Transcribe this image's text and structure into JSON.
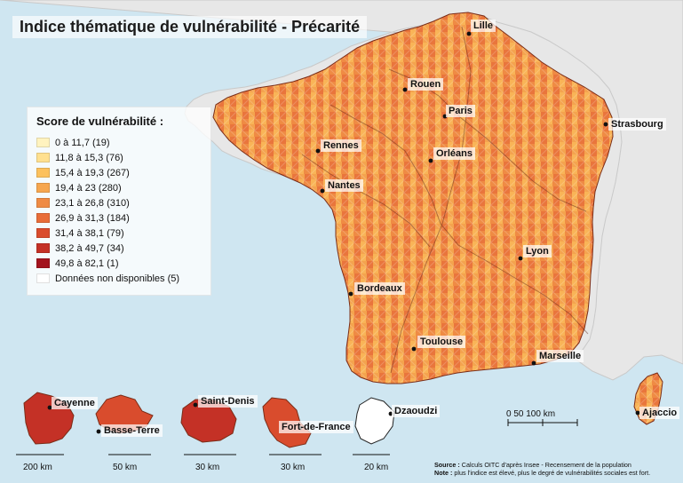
{
  "title": "Indice thématique de vulnérabilité - Précarité",
  "legend": {
    "title": "Score de vulnérabilité :",
    "items": [
      {
        "label": "0 à 11,7 (19)",
        "color": "#fff3bf"
      },
      {
        "label": "11,8 à 15,3 (76)",
        "color": "#ffe08f"
      },
      {
        "label": "15,4 à 19,3 (267)",
        "color": "#fcc15d"
      },
      {
        "label": "19,4 à 23 (280)",
        "color": "#f6a64f"
      },
      {
        "label": "23,1 à 26,8 (310)",
        "color": "#ef8b44"
      },
      {
        "label": "26,9 à 31,3 (184)",
        "color": "#e86d39"
      },
      {
        "label": "31,4 à 38,1 (79)",
        "color": "#d94c2d"
      },
      {
        "label": "38,2 à 49,7 (34)",
        "color": "#c43126"
      },
      {
        "label": "49,8 à 82,1 (1)",
        "color": "#a3141e"
      },
      {
        "label": "Données non disponibles (5)",
        "color": "#ffffff"
      }
    ]
  },
  "cities": {
    "lille": "Lille",
    "rouen": "Rouen",
    "paris": "Paris",
    "strasbourg": "Strasbourg",
    "rennes": "Rennes",
    "orleans": "Orléans",
    "nantes": "Nantes",
    "lyon": "Lyon",
    "bordeaux": "Bordeaux",
    "toulouse": "Toulouse",
    "marseille": "Marseille",
    "cayenne": "Cayenne",
    "basse_terre": "Basse-Terre",
    "saint_denis": "Saint-Denis",
    "fort_de_france": "Fort-de-France",
    "dzaoudzi": "Dzaoudzi",
    "ajaccio": "Ajaccio"
  },
  "scales": {
    "mainland": "0   50  100 km",
    "guyane": "200 km",
    "guadeloupe": "50 km",
    "reunion": "30 km",
    "martinique": "30 km",
    "mayotte": "20 km"
  },
  "footer": {
    "source_label": "Source :",
    "source_text": " Calculs OITC d'après Insee - Recensement de la population",
    "note_label": "Note :",
    "note_text": " plus l'indice est élevé, plus le degré de vulnérabilités sociales est fort."
  }
}
